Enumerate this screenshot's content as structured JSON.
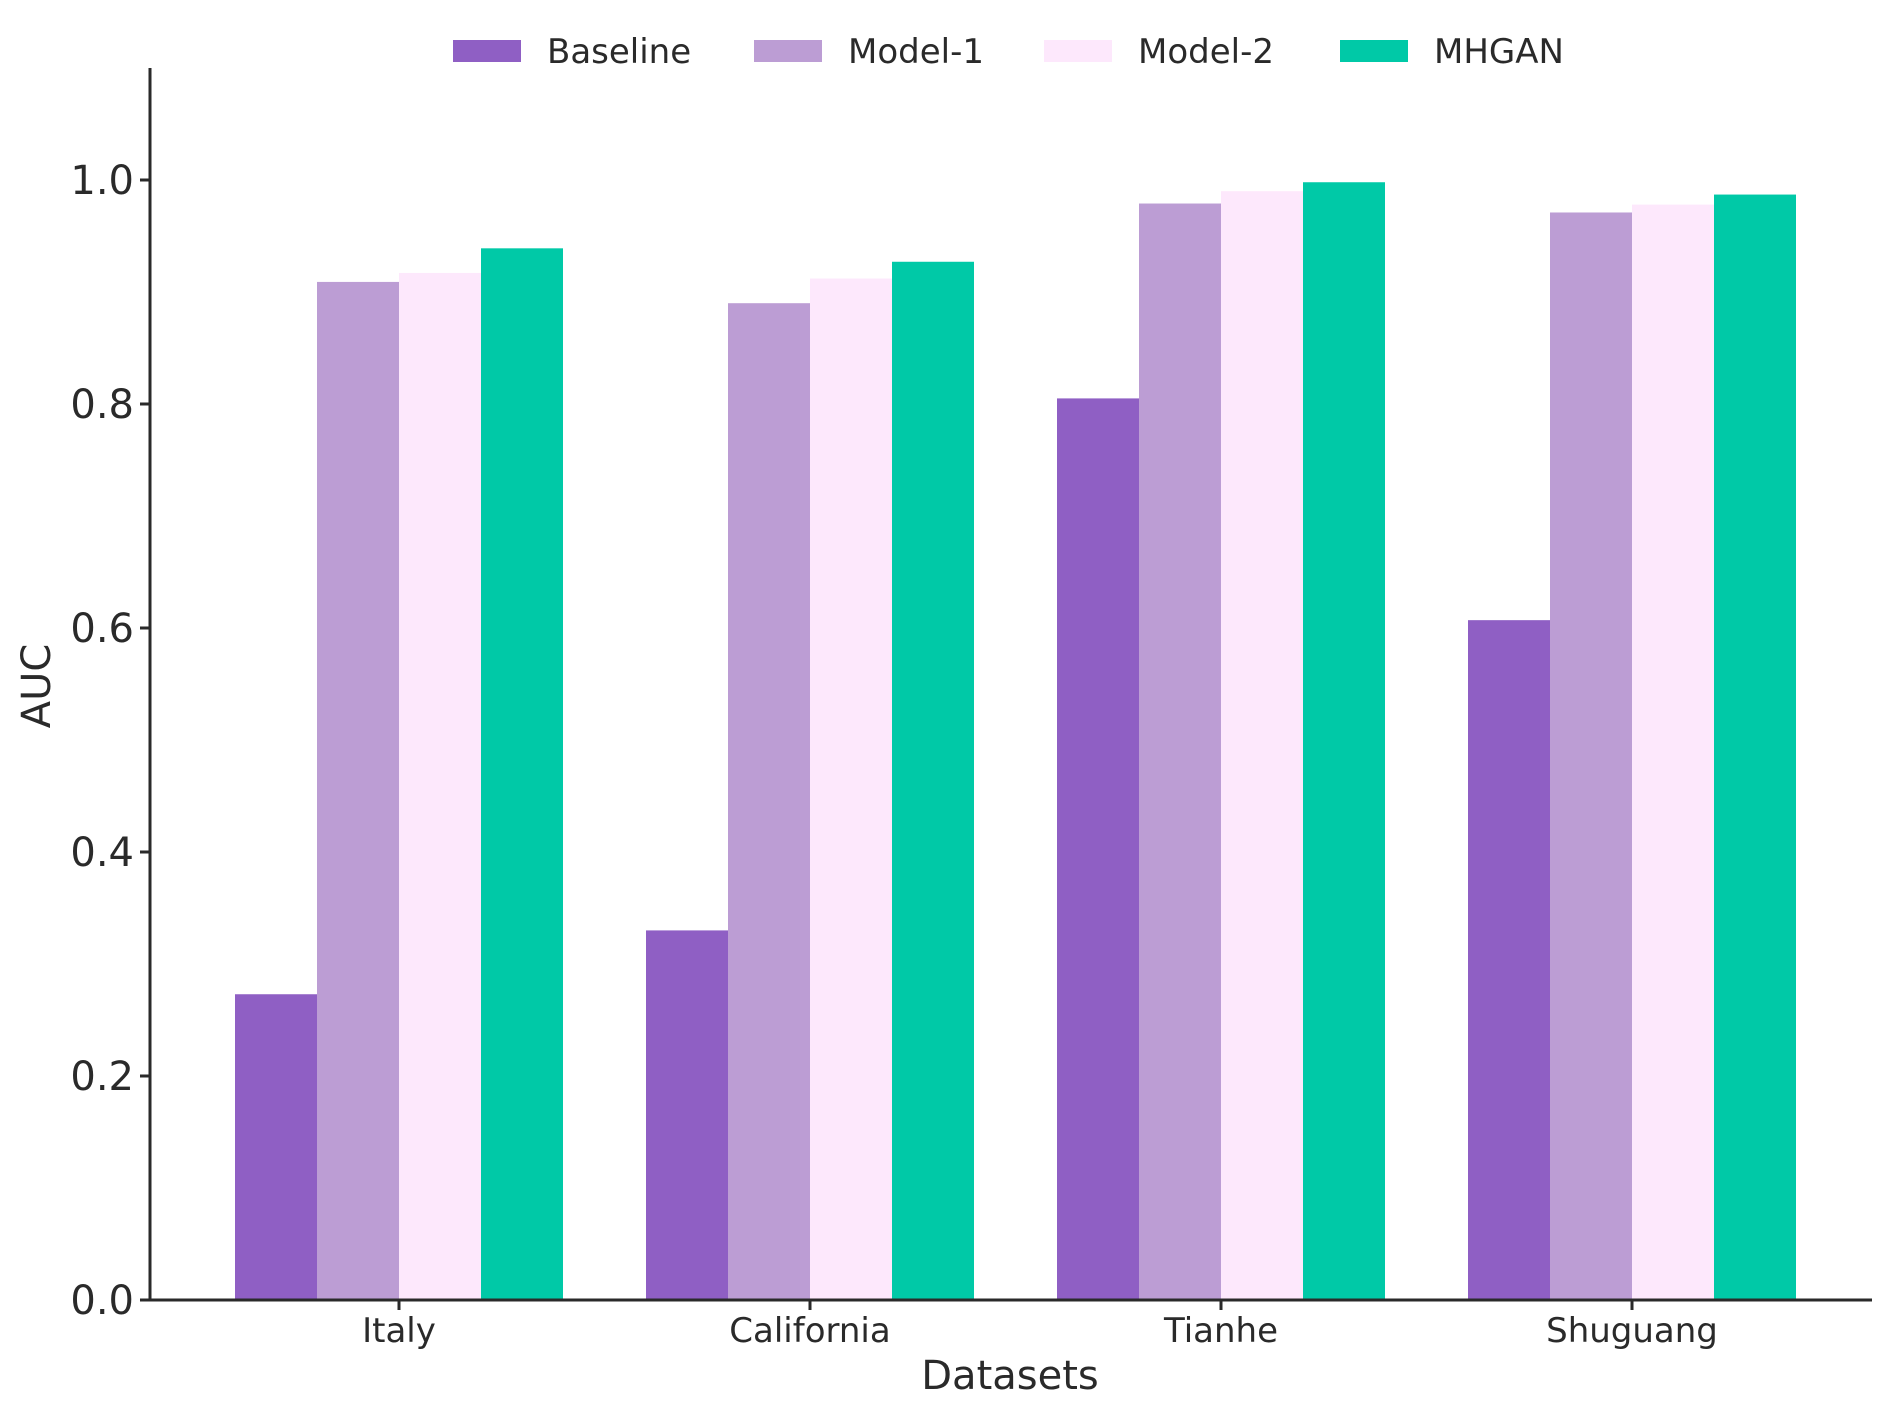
{
  "chart_data": {
    "type": "bar",
    "title": "",
    "xlabel": "Datasets",
    "ylabel": "AUC",
    "ylim": [
      0,
      1.1
    ],
    "yticks": [
      "0.0",
      "0.2",
      "0.4",
      "0.6",
      "0.8",
      "1.0"
    ],
    "categories": [
      "Italy",
      "California",
      "Tianhe",
      "Shuguang"
    ],
    "series": [
      {
        "name": "Baseline",
        "color": "#8f5fc4",
        "values": [
          0.273,
          0.33,
          0.805,
          0.607
        ]
      },
      {
        "name": "Model-1",
        "color": "#bc9dd4",
        "values": [
          0.909,
          0.89,
          0.979,
          0.971
        ]
      },
      {
        "name": "Model-2",
        "color": "#fde8fc",
        "values": [
          0.917,
          0.912,
          0.99,
          0.978
        ]
      },
      {
        "name": "MHGAN",
        "color": "#00c9a7",
        "values": [
          0.939,
          0.927,
          0.998,
          0.987
        ]
      }
    ],
    "legend_position": "top-center",
    "grid": false
  }
}
